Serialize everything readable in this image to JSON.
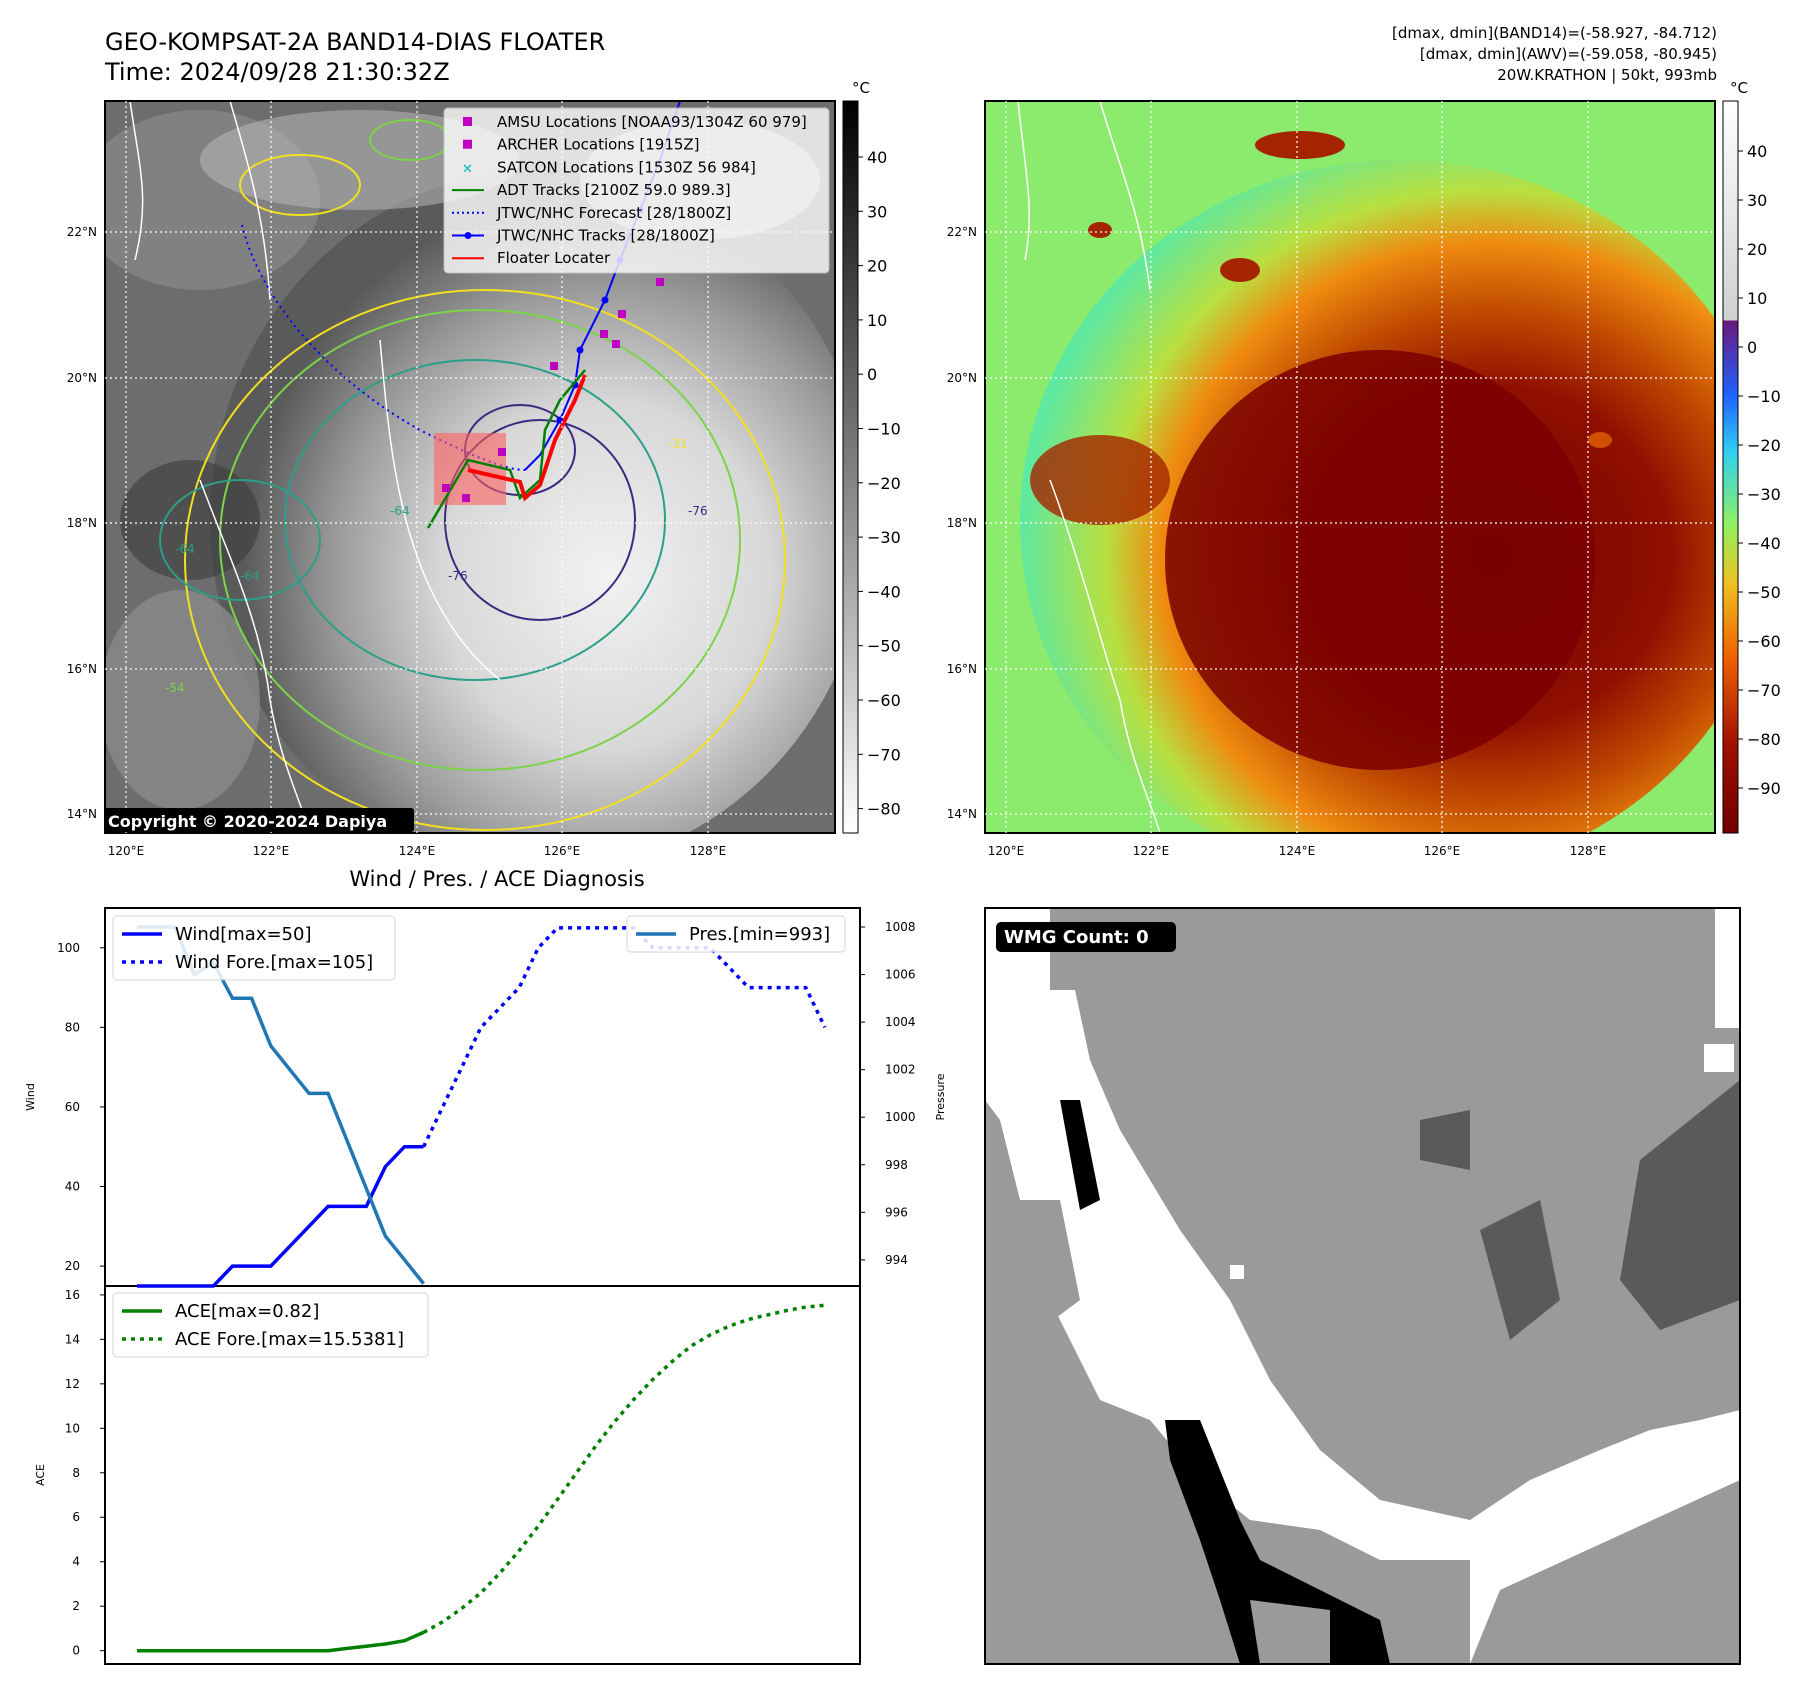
{
  "header": {
    "title": "GEO-KOMPSAT-2A BAND14-DIAS FLOATER",
    "time": "Time: 2024/09/28 21:30:32Z",
    "info_line1": "[dmax, dmin](BAND14)=(-58.927, -84.712)",
    "info_line2": "[dmax, dmin](AWV)=(-59.058, -80.945)",
    "info_line3": "20W.KRATHON | 50kt, 993mb"
  },
  "map": {
    "lat_labels": [
      "22°N",
      "20°N",
      "18°N",
      "16°N",
      "14°N"
    ],
    "lon_labels": [
      "120°E",
      "122°E",
      "124°E",
      "126°E",
      "128°E"
    ],
    "copyright": "Copyright © 2020-2024 Dapiya",
    "contour_labels": [
      "-64",
      "-64",
      "-76",
      "-31",
      "-54",
      "-64",
      "-76"
    ],
    "legend": [
      {
        "label": "AMSU Locations [NOAA93/1304Z 60 979]",
        "color": "#c000c0",
        "marker": "square"
      },
      {
        "label": "ARCHER Locations [1915Z]",
        "color": "#c000c0",
        "marker": "square"
      },
      {
        "label": "SATCON Locations [1530Z 56 984]",
        "color": "#20c0c0",
        "marker": "x"
      },
      {
        "label": "ADT Tracks [2100Z 59.0 989.3]",
        "color": "#008000",
        "marker": "line"
      },
      {
        "label": "JTWC/NHC Forecast [28/1800Z]",
        "color": "#0000ff",
        "marker": "dotted"
      },
      {
        "label": "JTWC/NHC Tracks [28/1800Z]",
        "color": "#0000ff",
        "marker": "line-dot"
      },
      {
        "label": "Floater Locater",
        "color": "#ff0000",
        "marker": "line"
      }
    ]
  },
  "colorbars": {
    "unit": "°C",
    "gray_ticks": [
      "40",
      "30",
      "20",
      "10",
      "0",
      "−10",
      "−20",
      "−30",
      "−40",
      "−50",
      "−60",
      "−70",
      "−80"
    ],
    "color_ticks": [
      "40",
      "30",
      "20",
      "10",
      "0",
      "−10",
      "−20",
      "−30",
      "−40",
      "−50",
      "−60",
      "−70",
      "−80",
      "−90"
    ]
  },
  "diagnosis": {
    "title": "Wind / Pres. / ACE Diagnosis",
    "wind_ylabel": "Wind",
    "pres_ylabel": "Pressure",
    "ace_ylabel": "ACE",
    "wind_ticks": [
      "100",
      "80",
      "60",
      "40",
      "20"
    ],
    "pres_ticks": [
      "1008",
      "1006",
      "1004",
      "1002",
      "1000",
      "998",
      "996",
      "994"
    ],
    "ace_ticks": [
      "16",
      "14",
      "12",
      "10",
      "8",
      "6",
      "4",
      "2",
      "0"
    ],
    "legend_wind": "Wind[max=50]",
    "legend_wind_fore": "Wind Fore.[max=105]",
    "legend_pres": "Pres.[min=993]",
    "legend_ace": "ACE[max=0.82]",
    "legend_ace_fore": "ACE Fore.[max=15.5381]"
  },
  "wmg": {
    "label": "WMG Count: 0"
  },
  "chart_data": [
    {
      "type": "line",
      "title": "Wind / Pres. / ACE Diagnosis",
      "ylabel": "Wind",
      "ylim": [
        15,
        110
      ],
      "series": [
        {
          "name": "Wind[max=50]",
          "x": [
            0,
            1,
            2,
            3,
            4,
            5,
            6,
            7,
            8,
            9,
            10,
            11,
            12,
            13,
            14,
            15
          ],
          "values": [
            15,
            15,
            15,
            15,
            15,
            20,
            20,
            20,
            25,
            30,
            35,
            35,
            35,
            45,
            50,
            50
          ]
        },
        {
          "name": "Wind Fore.[max=105]",
          "x": [
            15,
            16,
            17,
            18,
            19,
            20,
            21,
            22,
            23,
            24,
            25,
            26,
            27,
            28,
            29,
            30,
            31,
            32,
            33,
            34,
            35,
            36
          ],
          "values": [
            50,
            60,
            70,
            80,
            85,
            90,
            100,
            105,
            105,
            105,
            105,
            105,
            100,
            100,
            100,
            100,
            95,
            90,
            90,
            90,
            90,
            80
          ]
        }
      ]
    },
    {
      "type": "line",
      "ylabel": "Pressure",
      "ylim": [
        992.9,
        1008.8
      ],
      "series": [
        {
          "name": "Pres.[min=993]",
          "x": [
            0,
            1,
            2,
            3,
            4,
            5,
            6,
            7,
            8,
            9,
            10,
            11,
            12,
            13,
            14,
            15
          ],
          "values": [
            1008,
            1008,
            1008,
            1006,
            1006.5,
            1005,
            1005,
            1003,
            1002,
            1001,
            1001,
            999,
            997,
            995,
            994,
            993
          ]
        }
      ]
    },
    {
      "type": "line",
      "ylabel": "ACE",
      "ylim": [
        -0.4,
        16
      ],
      "series": [
        {
          "name": "ACE[max=0.82]",
          "x": [
            0,
            3,
            6,
            9,
            10,
            11,
            12,
            13,
            14,
            15
          ],
          "values": [
            0,
            0,
            0,
            0,
            0,
            0.1,
            0.2,
            0.3,
            0.45,
            0.82
          ]
        },
        {
          "name": "ACE Fore.[max=15.5381]",
          "x": [
            15,
            16,
            17,
            18,
            19,
            20,
            21,
            22,
            23,
            24,
            25,
            26,
            27,
            28,
            29,
            30,
            31,
            32,
            33,
            34,
            35,
            36
          ],
          "values": [
            0.82,
            1.3,
            1.9,
            2.6,
            3.5,
            4.5,
            5.6,
            6.8,
            8.0,
            9.2,
            10.3,
            11.3,
            12.2,
            13.0,
            13.7,
            14.2,
            14.6,
            14.9,
            15.1,
            15.3,
            15.45,
            15.5381
          ]
        }
      ]
    }
  ]
}
